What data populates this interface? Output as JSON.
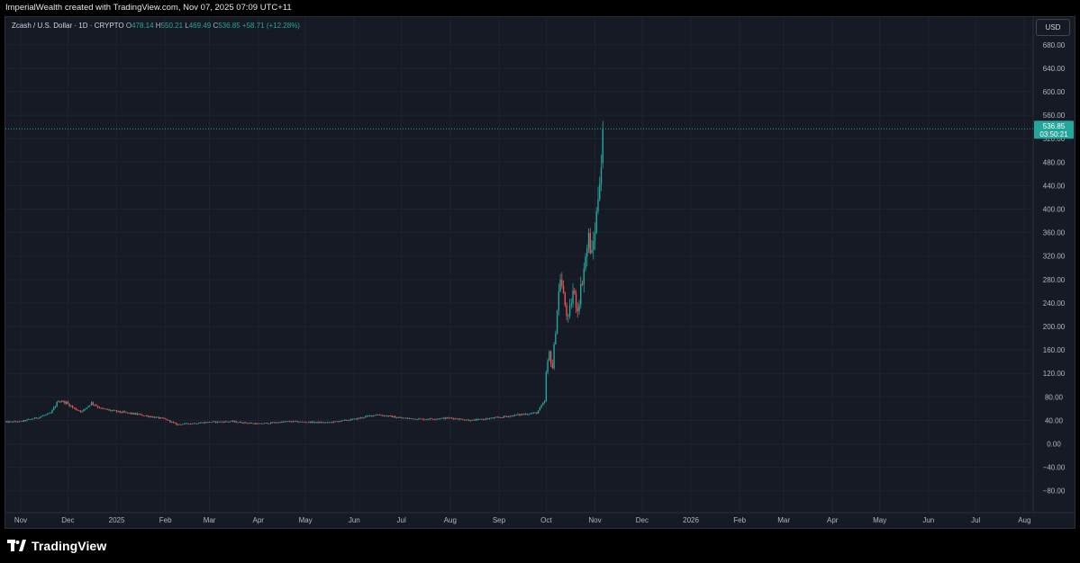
{
  "header": {
    "caption": "ImperialWealth created with TradingView.com, Nov 07, 2025 07:09 UTC+11"
  },
  "legend": {
    "symbol": "Zcash / U.S. Dollar · 1D · CRYPTO",
    "o_label": "O",
    "o_value": "478.14",
    "h_label": "H",
    "h_value": "550.21",
    "l_label": "L",
    "l_value": "469.49",
    "c_label": "C",
    "c_value": "536.85",
    "change": "+58.71 (+12.28%)"
  },
  "currency_button": "USD",
  "price_tag": {
    "price": "536.85",
    "countdown": "03:50:21"
  },
  "footer": {
    "brand": "TradingView",
    "logo_icon": "tradingview-logo-icon"
  },
  "colors": {
    "up": "#26a69a",
    "down": "#ef5350",
    "background": "#161a25",
    "grid": "#1f2331"
  },
  "chart_data": {
    "type": "candlestick",
    "title": "",
    "xlabel": "",
    "ylabel": "",
    "ylim": [
      -100,
      700
    ],
    "y_ticks": [
      "680.00",
      "640.00",
      "600.00",
      "560.00",
      "520.00",
      "480.00",
      "440.00",
      "400.00",
      "360.00",
      "320.00",
      "280.00",
      "240.00",
      "200.00",
      "160.00",
      "120.00",
      "80.00",
      "40.00",
      "0.00",
      "−40.00",
      "−80.00"
    ],
    "y_tick_values": [
      680,
      640,
      600,
      560,
      520,
      480,
      440,
      400,
      360,
      320,
      280,
      240,
      200,
      160,
      120,
      80,
      40,
      0,
      -40,
      -80
    ],
    "x_ticks": [
      "Nov",
      "Dec",
      "2025",
      "Feb",
      "Mar",
      "Apr",
      "May",
      "Jun",
      "Jul",
      "Aug",
      "Sep",
      "Oct",
      "Nov",
      "Dec",
      "2026",
      "Feb",
      "Mar",
      "Apr",
      "May",
      "Jun",
      "Jul",
      "Aug"
    ],
    "x_tick_dates": [
      "2024-11-01",
      "2024-12-01",
      "2025-01-01",
      "2025-02-01",
      "2025-03-01",
      "2025-04-01",
      "2025-05-01",
      "2025-06-01",
      "2025-07-01",
      "2025-08-01",
      "2025-09-01",
      "2025-10-01",
      "2025-11-01",
      "2025-12-01",
      "2026-01-01",
      "2026-02-01",
      "2026-03-01",
      "2026-04-01",
      "2026-05-01",
      "2026-06-01",
      "2026-07-01",
      "2026-08-01"
    ],
    "last_price": 536.85,
    "price_path": [
      [
        "2024-10-22",
        37
      ],
      [
        "2024-11-01",
        38
      ],
      [
        "2024-11-12",
        45
      ],
      [
        "2024-11-20",
        52
      ],
      [
        "2024-11-25",
        74
      ],
      [
        "2024-11-30",
        70
      ],
      [
        "2024-12-05",
        60
      ],
      [
        "2024-12-10",
        55
      ],
      [
        "2024-12-16",
        70
      ],
      [
        "2024-12-22",
        60
      ],
      [
        "2025-01-01",
        55
      ],
      [
        "2025-01-15",
        50
      ],
      [
        "2025-02-01",
        42
      ],
      [
        "2025-02-08",
        33
      ],
      [
        "2025-03-01",
        37
      ],
      [
        "2025-03-15",
        38
      ],
      [
        "2025-04-01",
        34
      ],
      [
        "2025-04-20",
        38
      ],
      [
        "2025-05-15",
        36
      ],
      [
        "2025-06-01",
        42
      ],
      [
        "2025-06-15",
        50
      ],
      [
        "2025-07-01",
        44
      ],
      [
        "2025-07-15",
        42
      ],
      [
        "2025-08-01",
        44
      ],
      [
        "2025-08-15",
        40
      ],
      [
        "2025-09-01",
        45
      ],
      [
        "2025-09-15",
        50
      ],
      [
        "2025-09-25",
        53
      ],
      [
        "2025-09-30",
        72
      ],
      [
        "2025-10-01",
        120
      ],
      [
        "2025-10-03",
        155
      ],
      [
        "2025-10-05",
        130
      ],
      [
        "2025-10-08",
        230
      ],
      [
        "2025-10-10",
        285
      ],
      [
        "2025-10-12",
        250
      ],
      [
        "2025-10-15",
        210
      ],
      [
        "2025-10-18",
        260
      ],
      [
        "2025-10-21",
        230
      ],
      [
        "2025-10-25",
        300
      ],
      [
        "2025-10-28",
        350
      ],
      [
        "2025-10-30",
        320
      ],
      [
        "2025-11-02",
        390
      ],
      [
        "2025-11-04",
        460
      ],
      [
        "2025-11-05",
        478
      ],
      [
        "2025-11-06",
        536.85
      ]
    ]
  }
}
